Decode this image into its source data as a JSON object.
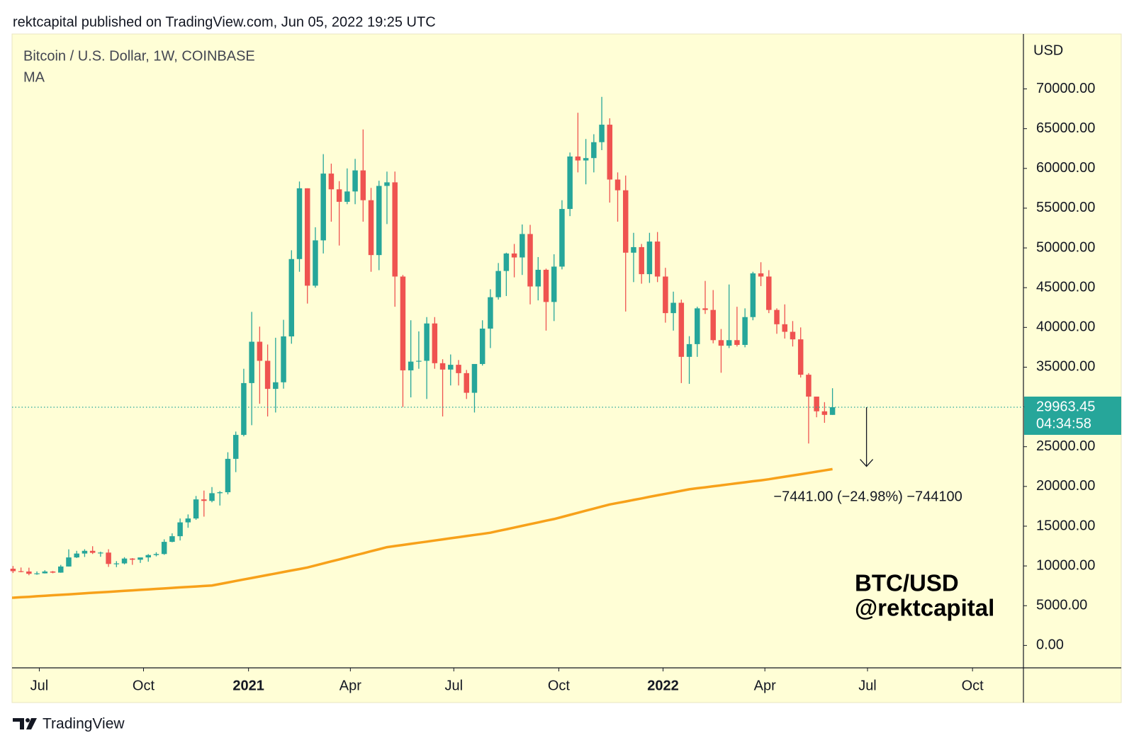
{
  "header": "rektcapital published on TradingView.com, Jun 05, 2022 19:25 UTC",
  "footer": "TradingView",
  "chart_data": {
    "type": "candlestick",
    "title": "Bitcoin / U.S. Dollar, 1W, COINBASE",
    "indicator": "MA",
    "y_axis_label": "USD",
    "watermark": [
      "BTC/USD",
      "@rektcapital"
    ],
    "countdown": "04:34:58",
    "up_color": "#26a69a",
    "down_color": "#ef5350",
    "ma_color": "#f7a11a",
    "background": "#fffed6",
    "open": [
      9650,
      9340,
      9300,
      9010,
      9070,
      9300,
      9160,
      9930,
      11070,
      11560,
      11900,
      11650,
      11680,
      10250,
      10320,
      10930,
      10780,
      11070,
      11370,
      11500,
      13030,
      13740,
      15480,
      15970,
      18370,
      18180,
      19150,
      19270,
      23470,
      26480,
      33000,
      38200,
      35800,
      32270,
      33100,
      38870,
      48600,
      57500,
      45250,
      50950,
      59350,
      57370,
      55800,
      57100,
      59750,
      56000,
      49100,
      57800,
      58250,
      46400,
      34600,
      35700,
      35800,
      40500,
      35500,
      34700,
      35300,
      34250,
      31780,
      35400,
      39850,
      43800,
      47100,
      49300,
      48800,
      51750,
      45150,
      47250,
      43200,
      47650,
      54900,
      61500,
      61000,
      61300,
      63300,
      65500,
      58600,
      57250,
      49400,
      50100,
      46700,
      50800,
      46400,
      41800,
      43100,
      36300,
      37900,
      42400,
      42200,
      38400,
      37700,
      38400,
      37800,
      41300,
      46800,
      46400,
      42200,
      40400,
      39450,
      38500,
      34050,
      31300,
      29450,
      29000
    ],
    "high": [
      9990,
      9800,
      9780,
      9310,
      9460,
      9360,
      10130,
      12090,
      11900,
      12100,
      12480,
      11800,
      12100,
      10600,
      11100,
      10990,
      10950,
      11490,
      11720,
      13350,
      14100,
      15970,
      16480,
      18800,
      19480,
      19920,
      19420,
      24300,
      26900,
      34800,
      41950,
      40100,
      37850,
      38700,
      40960,
      49700,
      58350,
      57500,
      52600,
      61800,
      60600,
      58400,
      60000,
      61200,
      64900,
      57550,
      58450,
      59600,
      59600,
      46600,
      40900,
      39500,
      41300,
      41300,
      36000,
      36600,
      35900,
      34650,
      34800,
      40900,
      44800,
      48100,
      49400,
      50500,
      52950,
      52900,
      48850,
      47400,
      49200,
      56000,
      62000,
      67000,
      63700,
      64300,
      69000,
      66300,
      59500,
      59100,
      51900,
      50500,
      51900,
      52000,
      47500,
      44500,
      43500,
      38900,
      42600,
      45850,
      44700,
      39800,
      45400,
      42600,
      42400,
      47000,
      48200,
      47200,
      42400,
      42900,
      40800,
      40000,
      34250,
      31300,
      30600,
      32350
    ],
    "low": [
      9110,
      9200,
      8830,
      8890,
      9050,
      9080,
      9140,
      9920,
      11000,
      11130,
      11500,
      11150,
      9880,
      9850,
      10200,
      10140,
      10380,
      10530,
      11200,
      11400,
      12980,
      13200,
      14800,
      15800,
      16200,
      18000,
      17600,
      19000,
      21800,
      26300,
      27700,
      30400,
      28800,
      29300,
      32300,
      37950,
      47000,
      43000,
      45000,
      49300,
      53300,
      50300,
      55500,
      55500,
      53300,
      47000,
      47200,
      53000,
      42600,
      30000,
      31200,
      34800,
      31000,
      34800,
      28800,
      32700,
      32700,
      31000,
      29300,
      35200,
      37400,
      43500,
      43950,
      46300,
      46600,
      42900,
      43400,
      39600,
      40800,
      47300,
      54000,
      59500,
      58000,
      59500,
      62300,
      55700,
      53300,
      42000,
      45700,
      45500,
      45600,
      45700,
      40600,
      39600,
      33000,
      32900,
      36300,
      41700,
      38000,
      34300,
      37400,
      37600,
      37500,
      40900,
      45200,
      41800,
      39200,
      38600,
      37600,
      33700,
      25400,
      28700,
      28000,
      29000
    ],
    "close": [
      9340,
      9300,
      9010,
      9070,
      9300,
      9160,
      9930,
      11070,
      11560,
      11900,
      11650,
      11680,
      10250,
      10320,
      10930,
      10780,
      11070,
      11370,
      11500,
      13030,
      13740,
      15480,
      15970,
      18370,
      18180,
      19150,
      19270,
      23470,
      26480,
      33000,
      38200,
      35800,
      32270,
      33100,
      38870,
      48600,
      57500,
      45250,
      50950,
      59350,
      57370,
      55800,
      57100,
      59750,
      56000,
      49100,
      57800,
      58250,
      46400,
      34600,
      35700,
      35800,
      40500,
      35500,
      34700,
      35300,
      34250,
      31780,
      35400,
      39850,
      43800,
      47100,
      49300,
      48800,
      51750,
      45150,
      47250,
      43200,
      47650,
      54900,
      61500,
      61000,
      61300,
      63300,
      65500,
      58600,
      57250,
      49400,
      50100,
      46700,
      50800,
      46400,
      41800,
      43100,
      36300,
      37900,
      42400,
      42200,
      38400,
      37700,
      38400,
      37800,
      41300,
      46800,
      46400,
      42200,
      40400,
      39450,
      38500,
      34050,
      31300,
      29450,
      29000,
      29963.45
    ],
    "ma": [
      6000,
      6060,
      6120,
      6190,
      6250,
      6310,
      6370,
      6430,
      6490,
      6560,
      6620,
      6680,
      6740,
      6800,
      6870,
      6930,
      6990,
      7050,
      7110,
      7170,
      7240,
      7300,
      7360,
      7420,
      7480,
      7545,
      7730,
      7920,
      8110,
      8300,
      8490,
      8670,
      8860,
      9050,
      9240,
      9430,
      9610,
      9800,
      10060,
      10310,
      10570,
      10820,
      11080,
      11340,
      11590,
      11850,
      12100,
      12360,
      12500,
      12640,
      12780,
      12920,
      13060,
      13200,
      13340,
      13480,
      13620,
      13760,
      13900,
      14040,
      14180,
      14400,
      14610,
      14830,
      15040,
      15260,
      15470,
      15690,
      15900,
      16160,
      16420,
      16680,
      16950,
      17210,
      17470,
      17730,
      17920,
      18110,
      18300,
      18490,
      18690,
      18880,
      19070,
      19260,
      19450,
      19640,
      19770,
      19890,
      20020,
      20140,
      20270,
      20400,
      20520,
      20650,
      20770,
      20900,
      21060,
      21220,
      21380,
      21540,
      21700,
      21860,
      22020,
      22180
    ],
    "measure": {
      "from": 29963.45,
      "to": 22522.45,
      "label": "−7441.00 (−24.98%) −744100"
    },
    "xlim": [
      0,
      127
    ],
    "xticks": [
      {
        "value": 3.3,
        "label": "Jul"
      },
      {
        "value": 16.4,
        "label": "Oct"
      },
      {
        "value": 29.6,
        "label": "2021"
      },
      {
        "value": 42.4,
        "label": "Apr"
      },
      {
        "value": 55.4,
        "label": "Jul"
      },
      {
        "value": 68.6,
        "label": "Oct"
      },
      {
        "value": 81.7,
        "label": "2022"
      },
      {
        "value": 94.5,
        "label": "Apr"
      },
      {
        "value": 107.4,
        "label": "Jul"
      },
      {
        "value": 120.6,
        "label": "Oct"
      }
    ],
    "ylim": [
      -2818,
      76818
    ],
    "yticks": [
      {
        "value": 0,
        "label": "0.00"
      },
      {
        "value": 5000,
        "label": "5000.00"
      },
      {
        "value": 10000,
        "label": "10000.00"
      },
      {
        "value": 15000,
        "label": "15000.00"
      },
      {
        "value": 20000,
        "label": "20000.00"
      },
      {
        "value": 25000,
        "label": "25000.00"
      },
      {
        "value": 30000,
        "label": "30000.00"
      },
      {
        "value": 35000,
        "label": "35000.00"
      },
      {
        "value": 40000,
        "label": "40000.00"
      },
      {
        "value": 45000,
        "label": "45000.00"
      },
      {
        "value": 50000,
        "label": "50000.00"
      },
      {
        "value": 55000,
        "label": "55000.00"
      },
      {
        "value": 60000,
        "label": "60000.00"
      },
      {
        "value": 65000,
        "label": "65000.00"
      },
      {
        "value": 70000,
        "label": "70000.00"
      }
    ]
  }
}
